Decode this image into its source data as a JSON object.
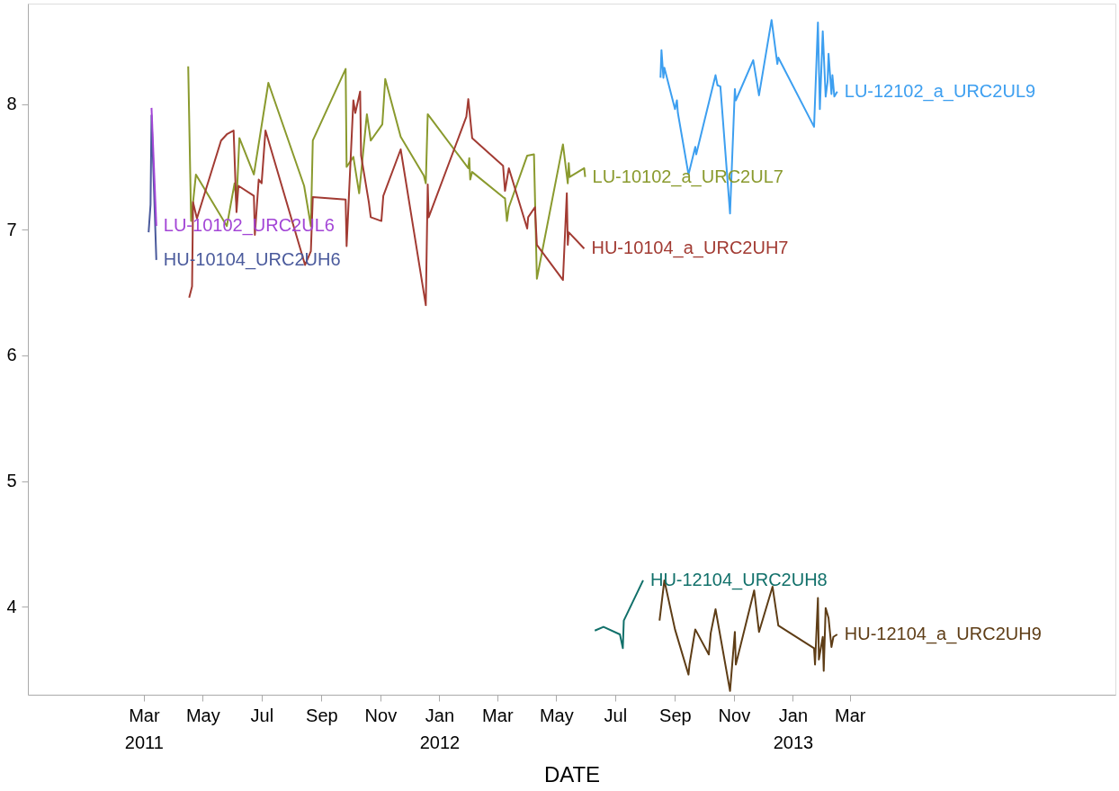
{
  "chart_data": {
    "type": "line",
    "xlabel": "DATE",
    "grid": false,
    "legend": false,
    "xlim": [
      "2010-11-01",
      "2013-12-01"
    ],
    "xticks": [
      {
        "value": "2011-03-01",
        "label": "Mar\n2011"
      },
      {
        "value": "2011-05-01",
        "label": "May"
      },
      {
        "value": "2011-07-01",
        "label": "Jul"
      },
      {
        "value": "2011-09-01",
        "label": "Sep"
      },
      {
        "value": "2011-11-01",
        "label": "Nov"
      },
      {
        "value": "2012-01-01",
        "label": "Jan\n2012"
      },
      {
        "value": "2012-03-01",
        "label": "Mar"
      },
      {
        "value": "2012-05-01",
        "label": "May"
      },
      {
        "value": "2012-07-01",
        "label": "Jul"
      },
      {
        "value": "2012-09-01",
        "label": "Sep"
      },
      {
        "value": "2012-11-01",
        "label": "Nov"
      },
      {
        "value": "2013-01-01",
        "label": "Jan\n2013"
      },
      {
        "value": "2013-03-01",
        "label": "Mar"
      }
    ],
    "ylim": [
      3.3,
      8.8
    ],
    "yticks": [
      4,
      5,
      6,
      7,
      8
    ],
    "series": [
      {
        "name": "HU-10104_URC2UH6",
        "color": "#4a5a9c",
        "x": [
          "2011-03-06",
          "2011-03-08",
          "2011-03-09",
          "2011-03-14"
        ],
        "values": [
          6.98,
          7.2,
          7.91,
          6.76
        ]
      },
      {
        "name": "LU-10102_URC2UL6",
        "color": "#a346d6",
        "x": [
          "2011-03-09",
          "2011-03-14"
        ],
        "values": [
          7.97,
          7.03
        ]
      },
      {
        "name": "LU-10102_a_URC2UL7",
        "color": "#8a9a2e",
        "x": [
          "2011-04-16",
          "2011-04-19",
          "2011-04-24",
          "2011-05-26",
          "2011-06-03",
          "2011-06-05",
          "2011-06-08",
          "2011-06-23",
          "2011-07-08",
          "2011-08-14",
          "2011-08-21",
          "2011-08-23",
          "2011-09-26",
          "2011-09-27",
          "2011-10-04",
          "2011-10-10",
          "2011-10-18",
          "2011-10-22",
          "2011-11-03",
          "2011-11-06",
          "2011-11-22",
          "2011-12-16",
          "2011-12-18",
          "2011-12-20",
          "2012-01-31",
          "2012-02-01",
          "2012-02-02",
          "2012-02-04",
          "2012-03-07",
          "2012-03-09",
          "2012-03-11",
          "2012-03-13",
          "2012-04-01",
          "2012-04-08",
          "2012-04-11",
          "2012-05-08",
          "2012-05-13",
          "2012-05-14",
          "2012-05-15",
          "2012-05-30",
          "2012-05-31"
        ],
        "values": [
          8.3,
          7.07,
          7.44,
          7.03,
          7.37,
          7.22,
          7.73,
          7.44,
          8.17,
          7.35,
          7.03,
          7.71,
          8.28,
          7.5,
          7.58,
          7.29,
          7.92,
          7.71,
          7.84,
          8.2,
          7.74,
          7.43,
          7.37,
          7.92,
          7.49,
          7.57,
          7.4,
          7.46,
          7.26,
          7.25,
          7.07,
          7.18,
          7.59,
          7.6,
          6.61,
          7.68,
          7.37,
          7.53,
          7.42,
          7.49,
          7.42
        ]
      },
      {
        "name": "HU-10104_a_URC2UH7",
        "color": "#a23b33",
        "x": [
          "2011-04-17",
          "2011-04-20",
          "2011-04-21",
          "2011-04-25",
          "2011-05-20",
          "2011-05-26",
          "2011-06-02",
          "2011-06-05",
          "2011-06-07",
          "2011-06-23",
          "2011-06-24",
          "2011-06-28",
          "2011-07-01",
          "2011-07-05",
          "2011-08-15",
          "2011-08-21",
          "2011-08-23",
          "2011-09-26",
          "2011-09-27",
          "2011-10-04",
          "2011-10-06",
          "2011-10-11",
          "2011-10-12",
          "2011-10-20",
          "2011-10-22",
          "2011-11-02",
          "2011-11-04",
          "2011-11-22",
          "2011-12-18",
          "2011-12-20",
          "2011-12-21",
          "2012-01-29",
          "2012-01-31",
          "2012-02-04",
          "2012-03-07",
          "2012-03-09",
          "2012-03-13",
          "2012-04-01",
          "2012-04-02",
          "2012-04-09",
          "2012-04-11",
          "2012-05-08",
          "2012-05-12",
          "2012-05-13",
          "2012-05-14",
          "2012-05-30"
        ],
        "values": [
          6.46,
          6.55,
          7.22,
          7.09,
          7.71,
          7.76,
          7.79,
          7.14,
          7.35,
          7.27,
          6.96,
          7.4,
          7.37,
          7.79,
          6.72,
          6.83,
          7.26,
          7.24,
          6.87,
          8.03,
          7.93,
          8.1,
          7.59,
          7.22,
          7.1,
          7.07,
          7.27,
          7.64,
          6.4,
          7.36,
          7.1,
          7.9,
          8.04,
          7.73,
          7.51,
          7.31,
          7.49,
          7.01,
          7.1,
          7.18,
          6.88,
          6.6,
          7.29,
          6.88,
          6.98,
          6.85
        ]
      },
      {
        "name": "LU-12102_a_URC2UL9",
        "color": "#3d9ff0",
        "x": [
          "2012-08-17",
          "2012-08-18",
          "2012-08-20",
          "2012-08-21",
          "2012-09-01",
          "2012-09-03",
          "2012-09-04",
          "2012-09-15",
          "2012-09-22",
          "2012-09-23",
          "2012-10-13",
          "2012-10-15",
          "2012-10-18",
          "2012-10-28",
          "2012-11-02",
          "2012-11-03",
          "2012-11-21",
          "2012-11-27",
          "2012-12-10",
          "2012-12-16",
          "2012-12-17",
          "2013-01-23",
          "2013-01-27",
          "2013-01-29",
          "2013-02-01",
          "2013-02-04",
          "2013-02-06",
          "2013-02-07",
          "2013-02-10",
          "2013-02-11",
          "2013-02-13",
          "2013-02-16"
        ],
        "values": [
          8.21,
          8.43,
          8.21,
          8.29,
          7.96,
          8.03,
          7.93,
          7.44,
          7.66,
          7.6,
          8.23,
          8.15,
          8.14,
          7.13,
          8.12,
          8.03,
          8.35,
          8.07,
          8.67,
          8.32,
          8.37,
          7.82,
          8.65,
          7.96,
          8.58,
          8.06,
          8.18,
          8.4,
          8.08,
          8.23,
          8.06,
          8.1
        ]
      },
      {
        "name": "HU-12104_URC2UH8",
        "color": "#11706a",
        "x": [
          "2012-06-10",
          "2012-06-19",
          "2012-07-06",
          "2012-07-09",
          "2012-07-10",
          "2012-07-30"
        ],
        "values": [
          3.81,
          3.84,
          3.78,
          3.67,
          3.89,
          4.21
        ]
      },
      {
        "name": "HU-12104_a_URC2UH9",
        "color": "#5e3d16",
        "x": [
          "2012-08-16",
          "2012-08-21",
          "2012-09-01",
          "2012-09-15",
          "2012-09-16",
          "2012-09-22",
          "2012-10-06",
          "2012-10-08",
          "2012-10-13",
          "2012-10-28",
          "2012-11-02",
          "2012-11-03",
          "2012-11-22",
          "2012-11-27",
          "2012-12-11",
          "2012-12-17",
          "2013-01-23",
          "2013-01-24",
          "2013-01-27",
          "2013-01-28",
          "2013-02-01",
          "2013-02-02",
          "2013-02-04",
          "2013-02-07",
          "2013-02-10",
          "2013-02-12",
          "2013-02-16"
        ],
        "values": [
          3.89,
          4.21,
          3.82,
          3.46,
          3.54,
          3.82,
          3.62,
          3.79,
          3.98,
          3.33,
          3.8,
          3.54,
          4.13,
          3.8,
          4.16,
          3.85,
          3.67,
          3.54,
          4.07,
          3.58,
          3.76,
          3.49,
          3.99,
          3.91,
          3.68,
          3.76,
          3.78
        ]
      }
    ]
  }
}
